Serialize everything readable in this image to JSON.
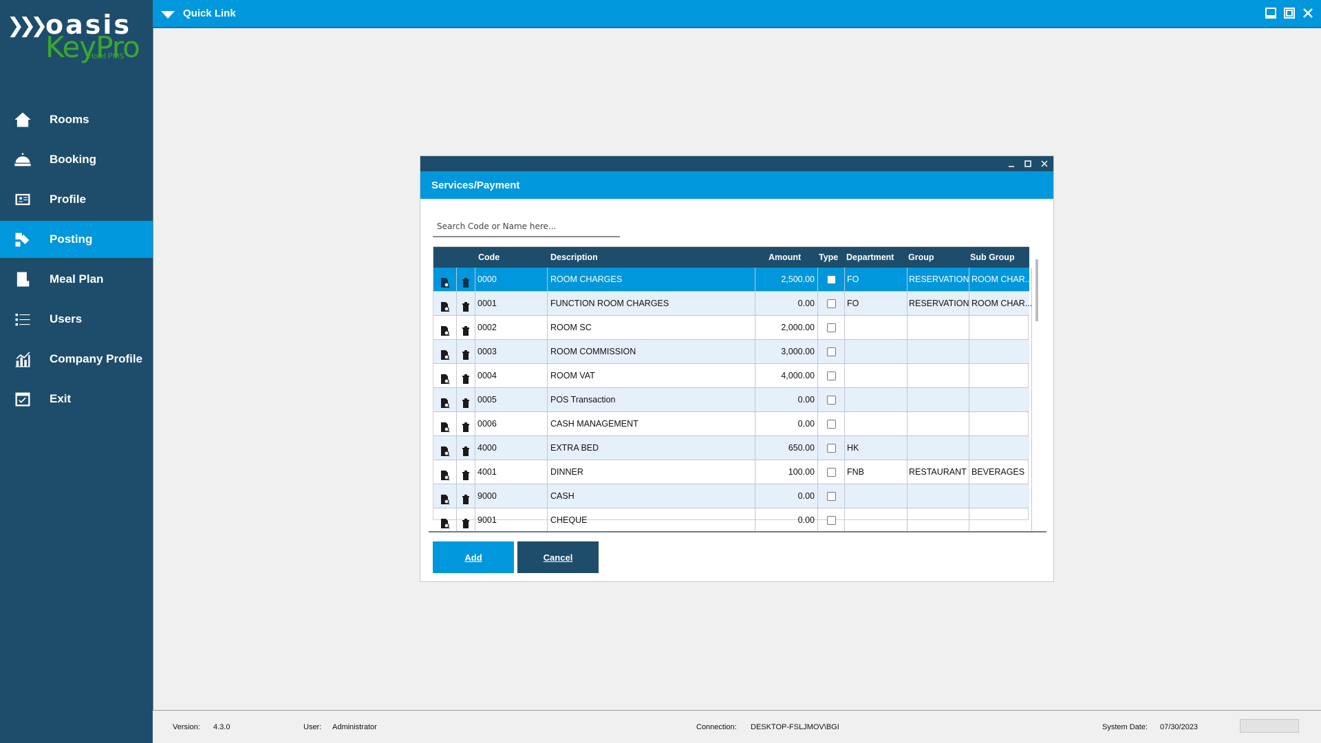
{
  "logo": {
    "brand": "oasis",
    "product": "KeyPro",
    "tagline": "Hotel PMS"
  },
  "nav": [
    {
      "label": "Rooms",
      "icon": "home-icon"
    },
    {
      "label": "Booking",
      "icon": "bellhop-icon"
    },
    {
      "label": "Profile",
      "icon": "profile-card-icon"
    },
    {
      "label": "Posting",
      "icon": "posting-icon",
      "active": true
    },
    {
      "label": "Meal Plan",
      "icon": "meal-plan-icon"
    },
    {
      "label": "Users",
      "icon": "users-list-icon"
    },
    {
      "label": "Company Profile",
      "icon": "chart-icon"
    },
    {
      "label": "Exit",
      "icon": "exit-check-icon"
    }
  ],
  "topbar": {
    "title": "Quick Link"
  },
  "dialog": {
    "title": "Services/Payment",
    "search_placeholder": "Search Code or Name here...",
    "columns": [
      "Code",
      "Description",
      "Amount",
      "Type",
      "Department",
      "Group",
      "Sub Group"
    ],
    "rows": [
      {
        "code": "0000",
        "description": "ROOM CHARGES",
        "amount": "2,500.00",
        "department": "FO",
        "group": "RESERVATION",
        "subgroup": "ROOM CHAR..."
      },
      {
        "code": "0001",
        "description": "FUNCTION ROOM CHARGES",
        "amount": "0.00",
        "department": "FO",
        "group": "RESERVATION",
        "subgroup": "ROOM CHAR..."
      },
      {
        "code": "0002",
        "description": "ROOM SC",
        "amount": "2,000.00",
        "department": "",
        "group": "",
        "subgroup": ""
      },
      {
        "code": "0003",
        "description": "ROOM COMMISSION",
        "amount": "3,000.00",
        "department": "",
        "group": "",
        "subgroup": ""
      },
      {
        "code": "0004",
        "description": "ROOM VAT",
        "amount": "4,000.00",
        "department": "",
        "group": "",
        "subgroup": ""
      },
      {
        "code": "0005",
        "description": "POS Transaction",
        "amount": "0.00",
        "department": "",
        "group": "",
        "subgroup": ""
      },
      {
        "code": "0006",
        "description": "CASH MANAGEMENT",
        "amount": "0.00",
        "department": "",
        "group": "",
        "subgroup": ""
      },
      {
        "code": "4000",
        "description": "EXTRA BED",
        "amount": "650.00",
        "department": "HK",
        "group": "",
        "subgroup": ""
      },
      {
        "code": "4001",
        "description": "DINNER",
        "amount": "100.00",
        "department": "FNB",
        "group": "RESTAURANT",
        "subgroup": "BEVERAGES"
      },
      {
        "code": "9000",
        "description": "CASH",
        "amount": "0.00",
        "department": "",
        "group": "",
        "subgroup": ""
      },
      {
        "code": "9001",
        "description": "CHEQUE",
        "amount": "0.00",
        "department": "",
        "group": "",
        "subgroup": ""
      }
    ],
    "add_label": "Add",
    "cancel_label": "Cancel"
  },
  "status": {
    "version_label": "Version:",
    "version": "4.3.0",
    "user_label": "User:",
    "user": "Administrator",
    "connection_label": "Connection:",
    "connection": "DESKTOP-FSLJMOV\\BGI",
    "date_label": "System Date:",
    "date": "07/30/2023"
  },
  "colors": {
    "sidebar": "#1e4d6b",
    "accent": "#0097dc",
    "logo_green": "#3aa82e"
  }
}
